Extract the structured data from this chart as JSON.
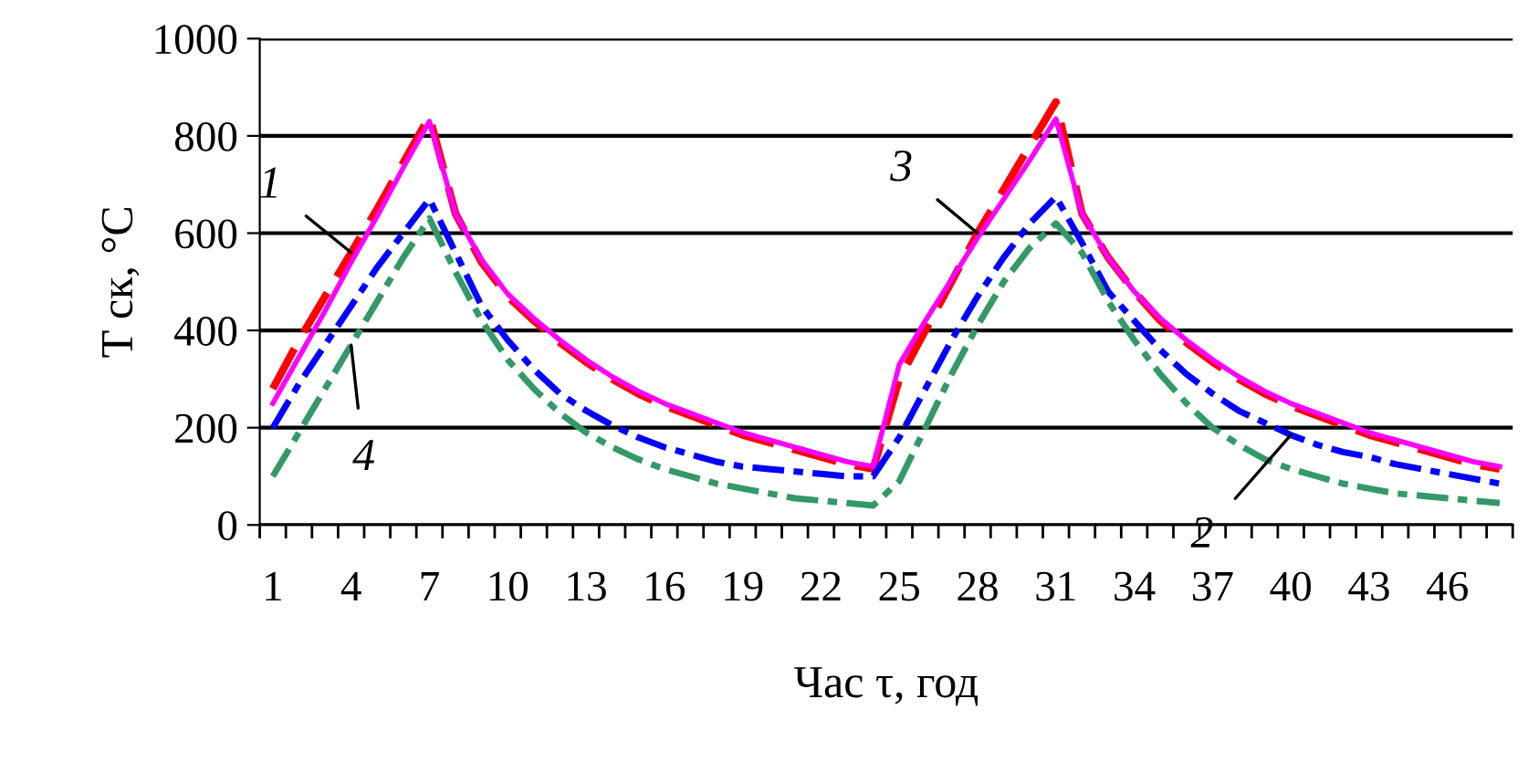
{
  "chart_data": {
    "type": "line",
    "xlabel": "Час τ, год",
    "ylabel": "T ск, °C",
    "categories": [
      "1",
      null,
      null,
      "4",
      null,
      null,
      "7",
      null,
      null,
      "10",
      null,
      null,
      "13",
      null,
      null,
      "16",
      null,
      null,
      "19",
      null,
      null,
      "22",
      null,
      null,
      "25",
      null,
      null,
      "28",
      null,
      null,
      "31",
      null,
      null,
      "34",
      null,
      null,
      "37",
      null,
      null,
      "40",
      null,
      null,
      "43",
      null,
      null,
      "46",
      null,
      null
    ],
    "ylim": [
      0,
      1000
    ],
    "yticks": [
      0,
      200,
      400,
      600,
      800,
      1000
    ],
    "grid": "y",
    "marker": "none",
    "series": [
      {
        "color": "#ff0000",
        "line_style": "dashed",
        "values": [
          280,
          380,
          470,
          560,
          650,
          745,
          840,
          640,
          540,
          470,
          420,
          375,
          335,
          300,
          270,
          245,
          225,
          205,
          185,
          170,
          155,
          140,
          125,
          115,
          300,
          400,
          500,
          600,
          690,
          780,
          870,
          640,
          550,
          480,
          420,
          375,
          335,
          300,
          270,
          245,
          225,
          205,
          185,
          170,
          155,
          140,
          125,
          115
        ]
      },
      {
        "color": "#0000ff",
        "line_style": "dashdot",
        "values": [
          200,
          290,
          370,
          450,
          530,
          600,
          670,
          560,
          450,
          380,
          320,
          270,
          235,
          205,
          180,
          160,
          145,
          130,
          120,
          115,
          110,
          105,
          100,
          100,
          180,
          280,
          380,
          470,
          550,
          620,
          675,
          580,
          480,
          420,
          360,
          310,
          270,
          235,
          210,
          185,
          165,
          150,
          140,
          125,
          115,
          105,
          95,
          85
        ]
      },
      {
        "color": "#ff00ff",
        "line_style": "solid",
        "values": [
          250,
          345,
          440,
          540,
          635,
          735,
          830,
          640,
          545,
          475,
          425,
          380,
          340,
          305,
          275,
          250,
          230,
          210,
          190,
          175,
          160,
          145,
          130,
          120,
          330,
          420,
          505,
          590,
          670,
          750,
          835,
          640,
          550,
          480,
          425,
          380,
          340,
          305,
          275,
          250,
          230,
          210,
          190,
          175,
          160,
          145,
          130,
          120
        ]
      },
      {
        "color": "#339966",
        "line_style": "dashdot",
        "values": [
          100,
          190,
          280,
          370,
          460,
          550,
          630,
          520,
          420,
          340,
          280,
          230,
          190,
          160,
          135,
          115,
          100,
          85,
          75,
          65,
          55,
          50,
          45,
          40,
          90,
          200,
          310,
          410,
          500,
          570,
          620,
          560,
          460,
          380,
          310,
          250,
          200,
          165,
          135,
          115,
          100,
          85,
          75,
          65,
          60,
          55,
          50,
          45
        ]
      }
    ],
    "annotations": [
      {
        "text": "1",
        "x": "4",
        "y": 560
      },
      {
        "text": "2",
        "x": "40",
        "y": 185
      },
      {
        "text": "3",
        "x": "28",
        "y": 600
      },
      {
        "text": "4",
        "x": "4",
        "y": 370
      }
    ]
  }
}
